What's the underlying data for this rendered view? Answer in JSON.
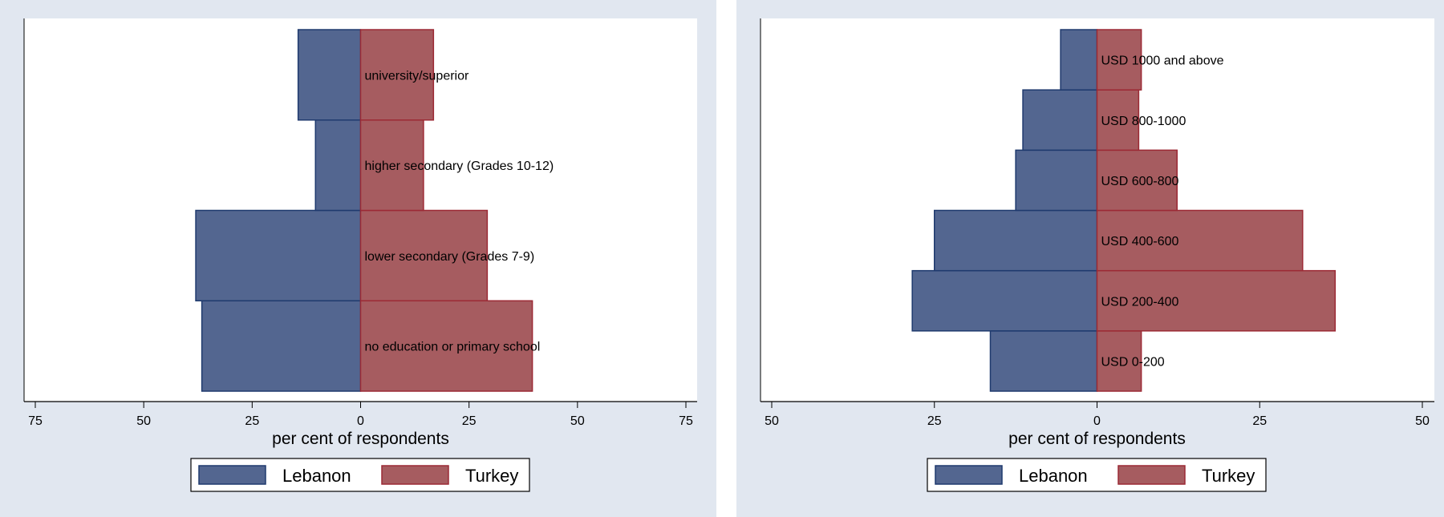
{
  "colors": {
    "lebanon": "#536690",
    "lebanon_edge": "#1f3a6e",
    "turkey": "#a65c60",
    "turkey_edge": "#9c2a35",
    "panel_bg": "#e1e7f0"
  },
  "chart_data": [
    {
      "type": "bar",
      "orientation": "horizontal-population-pyramid",
      "title": "",
      "xlabel": "per cent of respondents",
      "xlim": [
        -75,
        75
      ],
      "xticks": [
        -75,
        -50,
        -25,
        0,
        25,
        50,
        75
      ],
      "xtick_labels": [
        "75",
        "50",
        "25",
        "0",
        "25",
        "50",
        "75"
      ],
      "categories": [
        "no education or primary school",
        "lower secondary (Grades 7-9)",
        "higher secondary (Grades 10-12)",
        "university/superior"
      ],
      "series": [
        {
          "name": "Lebanon",
          "side": "left",
          "values": [
            36.6,
            38.0,
            10.4,
            14.4
          ]
        },
        {
          "name": "Turkey",
          "side": "right",
          "values": [
            39.6,
            29.2,
            14.5,
            16.8
          ]
        }
      ],
      "legend": {
        "position": "bottom",
        "entries": [
          "Lebanon",
          "Turkey"
        ]
      },
      "grid": false
    },
    {
      "type": "bar",
      "orientation": "horizontal-population-pyramid",
      "title": "",
      "xlabel": "per cent of respondents",
      "xlim": [
        -50,
        50
      ],
      "xticks": [
        -50,
        -25,
        0,
        25,
        50
      ],
      "xtick_labels": [
        "50",
        "25",
        "0",
        "25",
        "50"
      ],
      "categories": [
        "USD 0-200",
        "USD 200-400",
        "USD 400-600",
        "USD 600-800",
        "USD 800-1000",
        "USD 1000 and above"
      ],
      "series": [
        {
          "name": "Lebanon",
          "side": "left",
          "values": [
            16.4,
            28.4,
            25.0,
            12.5,
            11.4,
            5.6
          ]
        },
        {
          "name": "Turkey",
          "side": "right",
          "values": [
            6.8,
            36.6,
            31.6,
            12.3,
            6.4,
            6.8
          ]
        }
      ],
      "legend": {
        "position": "bottom",
        "entries": [
          "Lebanon",
          "Turkey"
        ]
      },
      "grid": false
    }
  ]
}
